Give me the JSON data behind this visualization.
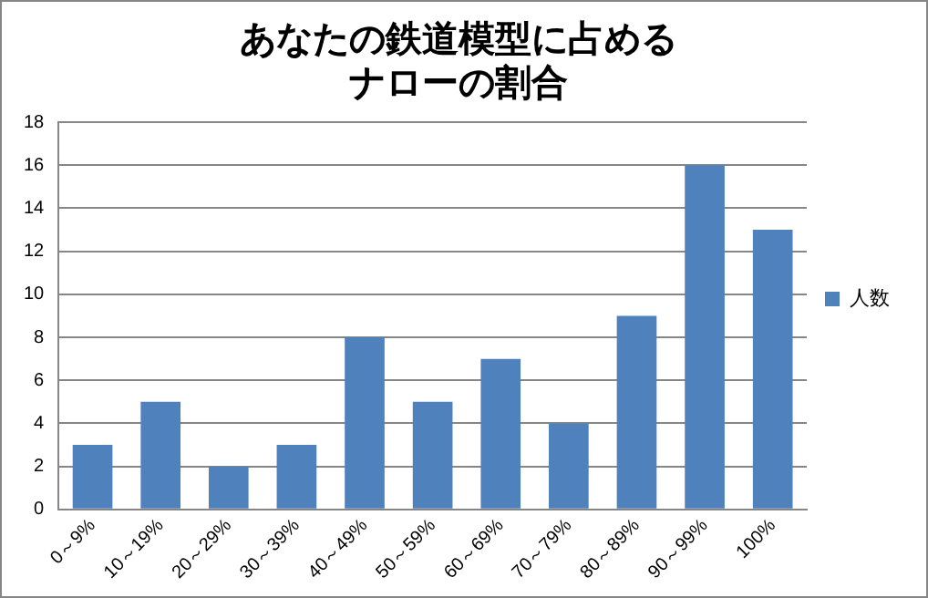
{
  "chart_data": {
    "type": "bar",
    "title": [
      "あなたの鉄道模型に占める",
      "ナローの割合"
    ],
    "categories": [
      "0～9%",
      "10～19%",
      "20～29%",
      "30～39%",
      "40～49%",
      "50～59%",
      "60～69%",
      "70～79%",
      "80～89%",
      "90～99%",
      "100%"
    ],
    "series": [
      {
        "name": "人数",
        "color": "#4f81bd",
        "values": [
          3,
          5,
          2,
          3,
          8,
          5,
          7,
          4,
          9,
          16,
          13
        ]
      }
    ],
    "ylim": [
      0,
      18
    ],
    "yticks": [
      0,
      2,
      4,
      6,
      8,
      10,
      12,
      14,
      16,
      18
    ],
    "grid": "y",
    "legend": "right"
  }
}
